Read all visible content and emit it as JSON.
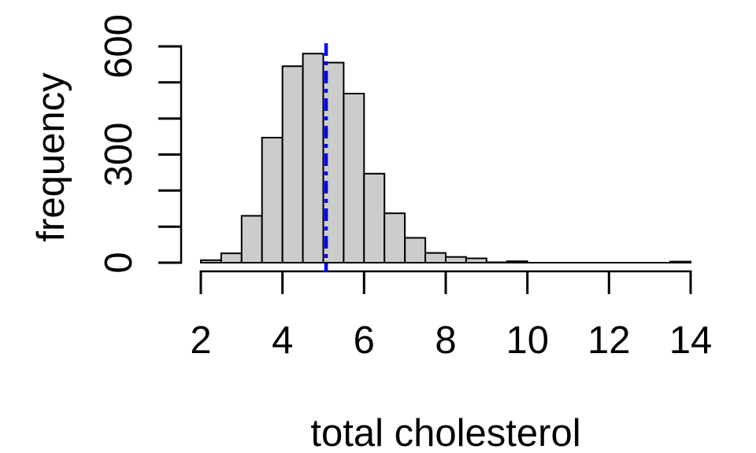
{
  "chart_data": {
    "type": "bar",
    "chart_kind": "histogram",
    "title": "",
    "xlabel": "total cholesterol",
    "ylabel": "frequency",
    "bins": {
      "start": 2.0,
      "width": 0.5
    },
    "counts": [
      7,
      26,
      130,
      347,
      545,
      580,
      555,
      469,
      247,
      137,
      69,
      27,
      16,
      12,
      1,
      4,
      0,
      0,
      0,
      0,
      0,
      0,
      0,
      3
    ],
    "xlim": [
      2,
      14
    ],
    "ylim": [
      0,
      600
    ],
    "x_ticks": [
      2,
      4,
      6,
      8,
      10,
      12,
      14
    ],
    "y_ticks": [
      0,
      100,
      200,
      300,
      400,
      500,
      600
    ],
    "y_tick_labels": [
      "0",
      "",
      "",
      "300",
      "",
      "",
      "600"
    ],
    "grid": false,
    "legend": "none",
    "bar_fill": "#cccccc",
    "bar_stroke": "#000000",
    "axis_color": "#000000",
    "text_color": "#000000",
    "background_color": "#ffffff",
    "vline": {
      "x": 5.07,
      "color": "#0000ff",
      "style": "dot-dash"
    }
  }
}
